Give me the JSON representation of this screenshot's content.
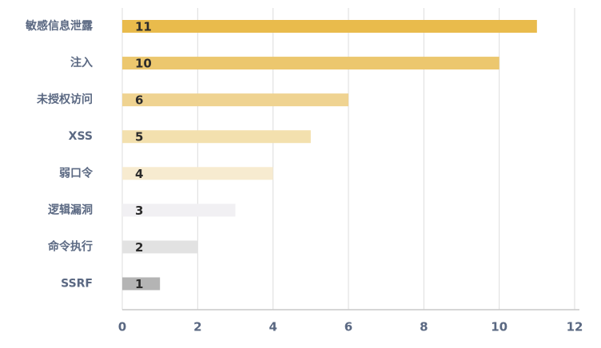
{
  "chart_data": {
    "type": "bar",
    "orientation": "horizontal",
    "categories": [
      "敏感信息泄露",
      "注入",
      "未授权访问",
      "XSS",
      "弱口令",
      "逻辑漏洞",
      "命令执行",
      "SSRF"
    ],
    "values": [
      11,
      10,
      6,
      5,
      4,
      3,
      2,
      1
    ],
    "colors": [
      "#e9bb4c",
      "#ecc76e",
      "#efd391",
      "#f3e0ae",
      "#f7ebd0",
      "#f1f0f3",
      "#e2e2e2",
      "#b4b4b4"
    ],
    "xlim": [
      0,
      12
    ],
    "xticks": [
      0,
      2,
      4,
      6,
      8,
      10,
      12
    ],
    "grid": true,
    "data_labels": true
  }
}
